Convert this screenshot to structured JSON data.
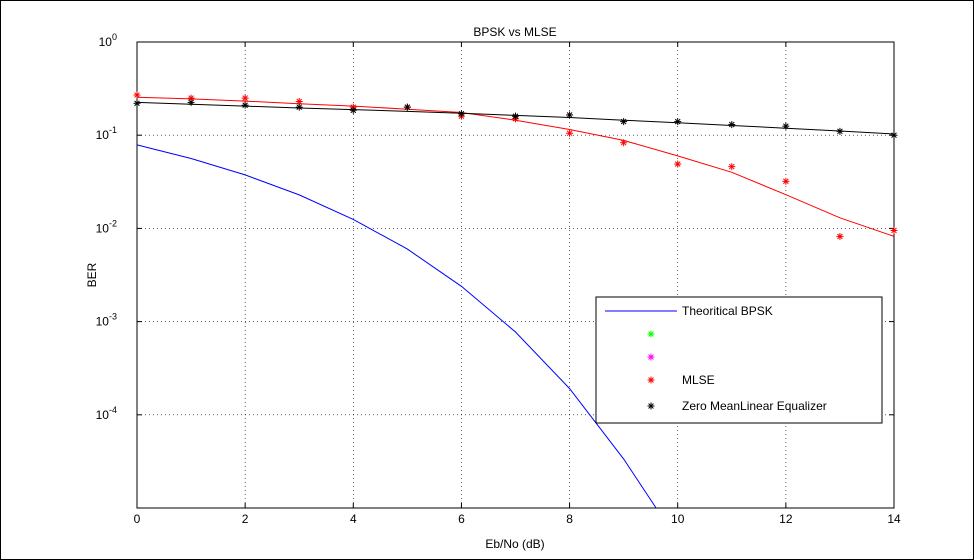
{
  "chart_data": {
    "type": "line",
    "title": "BPSK vs MLSE",
    "xlabel": "Eb/No (dB)",
    "ylabel": "BER",
    "xlim": [
      0,
      14
    ],
    "ylim": [
      1e-05,
      1
    ],
    "yscale": "log",
    "grid": true,
    "x_ticks": [
      0,
      2,
      4,
      6,
      8,
      10,
      12,
      14
    ],
    "y_ticks": [
      {
        "value": 1,
        "base": "10",
        "exp": "0"
      },
      {
        "value": 0.1,
        "base": "10",
        "exp": "-1"
      },
      {
        "value": 0.01,
        "base": "10",
        "exp": "-2"
      },
      {
        "value": 0.001,
        "base": "10",
        "exp": "-3"
      },
      {
        "value": 0.0001,
        "base": "10",
        "exp": "-4"
      }
    ],
    "legend_position": "lower-right",
    "series": [
      {
        "name": "Theoritical BPSK",
        "style": "line",
        "color": "#0000ff",
        "x": [
          0,
          1,
          2,
          3,
          4,
          5,
          6,
          7,
          8,
          9,
          9.6
        ],
        "y": [
          0.0786,
          0.0563,
          0.0375,
          0.0229,
          0.0125,
          0.006,
          0.00239,
          0.000773,
          0.000191,
          3.36e-05,
          1e-05
        ]
      },
      {
        "name": "",
        "style": "marker",
        "color": "#00ff00",
        "x": [],
        "y": []
      },
      {
        "name": "",
        "style": "marker",
        "color": "#ff00ff",
        "x": [],
        "y": []
      },
      {
        "name": "MLSE",
        "style": "marker",
        "color": "#ff0000",
        "x": [
          0,
          1,
          2,
          3,
          4,
          5,
          6,
          7,
          8,
          9,
          10,
          11,
          12,
          13,
          14
        ],
        "y": [
          0.27,
          0.25,
          0.25,
          0.23,
          0.2,
          0.2,
          0.16,
          0.15,
          0.105,
          0.083,
          0.049,
          0.046,
          0.032,
          0.0082,
          0.0095
        ],
        "fit_x": [
          0,
          1,
          2,
          3,
          4,
          5,
          6,
          7,
          8,
          9,
          10,
          11,
          12,
          13,
          14
        ],
        "fit_y": [
          0.255,
          0.245,
          0.232,
          0.218,
          0.205,
          0.19,
          0.175,
          0.145,
          0.115,
          0.088,
          0.06,
          0.04,
          0.023,
          0.013,
          0.0082
        ]
      },
      {
        "name": "Zero MeanLinear Equalizer",
        "style": "marker",
        "color": "#000000",
        "x": [
          0,
          1,
          2,
          3,
          4,
          5,
          6,
          7,
          8,
          9,
          10,
          11,
          12,
          13,
          14
        ],
        "y": [
          0.22,
          0.225,
          0.21,
          0.2,
          0.185,
          0.2,
          0.17,
          0.16,
          0.165,
          0.14,
          0.14,
          0.13,
          0.125,
          0.11,
          0.1
        ],
        "fit_x": [
          0,
          1,
          2,
          3,
          4,
          5,
          6,
          7,
          8,
          9,
          10,
          11,
          12,
          13,
          14
        ],
        "fit_y": [
          0.225,
          0.215,
          0.205,
          0.196,
          0.188,
          0.18,
          0.172,
          0.163,
          0.155,
          0.145,
          0.136,
          0.127,
          0.119,
          0.111,
          0.103
        ]
      }
    ]
  }
}
